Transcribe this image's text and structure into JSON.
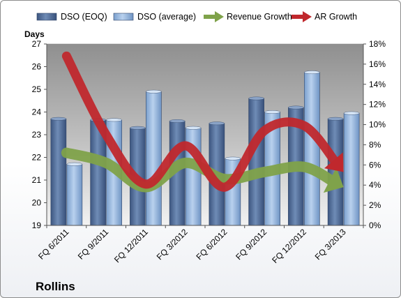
{
  "chart_data": {
    "type": "bar",
    "company": "Rollins",
    "y_left_title": "Days",
    "categories": [
      "FQ 6/2011",
      "FQ 9/2011",
      "FQ 12/2011",
      "FQ 3/2012",
      "FQ 6/2012",
      "FQ 9/2012",
      "FQ 12/2012",
      "FQ 3/2013"
    ],
    "series": [
      {
        "name": "DSO (EOQ)",
        "type": "bar",
        "axis": "left",
        "color": "#4a6590",
        "values": [
          23.7,
          23.65,
          23.3,
          23.6,
          23.5,
          24.6,
          24.2,
          23.7
        ]
      },
      {
        "name": "DSO (average)",
        "type": "bar",
        "axis": "left",
        "color": "#8fb3dd",
        "values": [
          21.7,
          23.65,
          24.9,
          23.3,
          21.95,
          24.0,
          25.75,
          23.95
        ]
      },
      {
        "name": "Revenue Growth",
        "type": "line",
        "axis": "right",
        "color": "#7fa24a",
        "values": [
          7.2,
          6.2,
          3.8,
          6.2,
          4.6,
          5.3,
          5.8,
          3.8
        ]
      },
      {
        "name": "AR Growth",
        "type": "line",
        "axis": "right",
        "color": "#c0282d",
        "values": [
          16.8,
          9.0,
          4.1,
          7.9,
          3.8,
          9.4,
          9.9,
          5.3
        ]
      }
    ],
    "y_left": {
      "min": 19,
      "max": 27,
      "ticks": [
        "19",
        "20",
        "21",
        "22",
        "23",
        "24",
        "25",
        "26",
        "27"
      ]
    },
    "y_right": {
      "min": 0,
      "max": 18,
      "ticks": [
        "0%",
        "2%",
        "4%",
        "6%",
        "8%",
        "10%",
        "12%",
        "14%",
        "16%",
        "18%"
      ]
    },
    "legend_position": "top",
    "grid": false
  }
}
